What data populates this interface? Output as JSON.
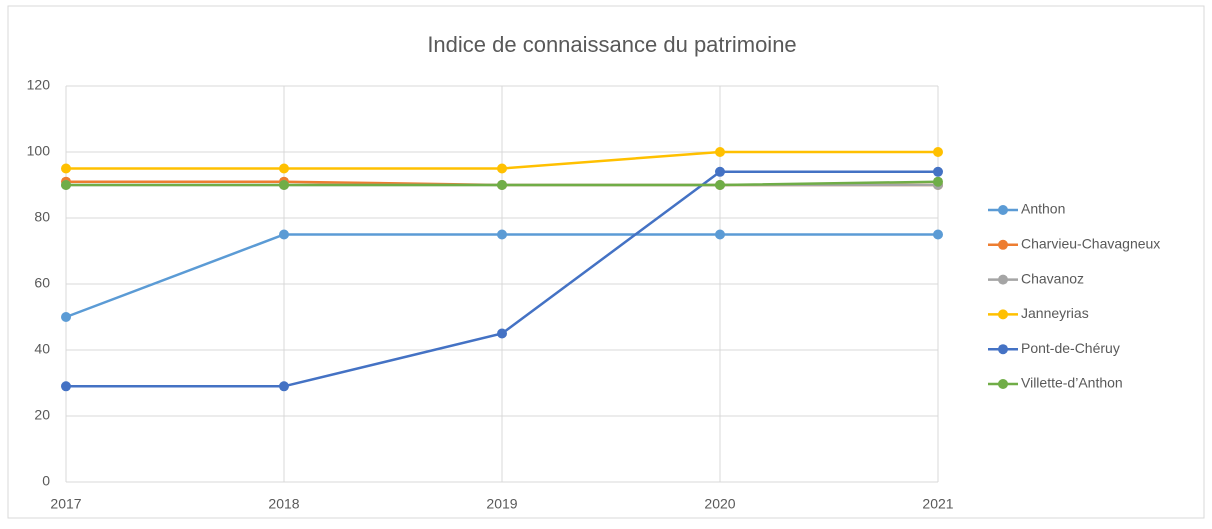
{
  "chart_data": {
    "type": "line",
    "title": "Indice de connaissance du patrimoine",
    "x": [
      2017,
      2018,
      2019,
      2020,
      2021
    ],
    "xlim": [
      2017,
      2021
    ],
    "xticks": [
      2017,
      2018,
      2019,
      2020,
      2021
    ],
    "ylim": [
      0,
      120
    ],
    "yticks": [
      0,
      20,
      40,
      60,
      80,
      100,
      120
    ],
    "grid": true,
    "legend": "right",
    "series": [
      {
        "name": "Anthon",
        "color": "#5b9bd5",
        "values": [
          50,
          75,
          75,
          75,
          75
        ]
      },
      {
        "name": "Charvieu-Chavagneux",
        "color": "#ed7d31",
        "values": [
          91,
          91,
          90,
          90,
          90
        ]
      },
      {
        "name": "Chavanoz",
        "color": "#a5a5a5",
        "values": [
          90,
          90,
          90,
          90,
          90
        ]
      },
      {
        "name": "Janneyrias",
        "color": "#ffc000",
        "values": [
          95,
          95,
          95,
          100,
          100
        ]
      },
      {
        "name": "Pont-de-Chéruy",
        "color": "#4472c4",
        "values": [
          29,
          29,
          45,
          94,
          94
        ]
      },
      {
        "name": "Villette-d’Anthon",
        "color": "#70ad47",
        "values": [
          90,
          90,
          90,
          90,
          91
        ]
      }
    ]
  }
}
